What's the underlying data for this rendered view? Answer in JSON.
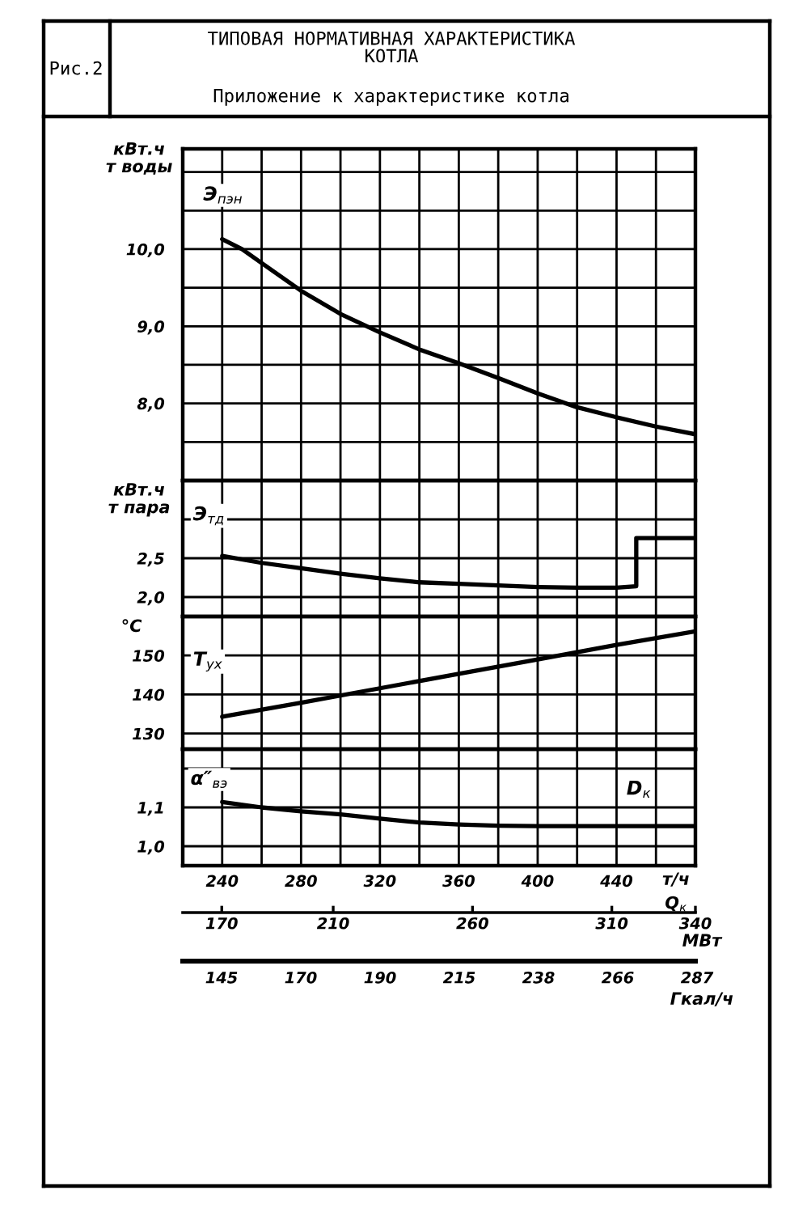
{
  "chart_data": [
    {
      "type": "line",
      "title": "ТИПОВАЯ НОРМАТИВНАЯ ХАРАКТЕРИСТИКА\nКОТЛА",
      "subtitle": "Приложение к характеристике котла",
      "annotations": [
        "Рис.2"
      ],
      "ylabel": "кВт.ч\nт воды",
      "xlim": [
        220,
        480
      ],
      "xticks": [
        240,
        {
          "value": 260,
          "label": null
        },
        280,
        {
          "value": 300,
          "label": null
        },
        320,
        {
          "value": 340,
          "label": null
        },
        360,
        {
          "value": 380,
          "label": null
        },
        400,
        {
          "value": 420,
          "label": null
        },
        440,
        {
          "value": 460,
          "label": null
        }
      ],
      "ylim": [
        7.0,
        11.3
      ],
      "yticks": [
        {
          "value": 7.5,
          "label": null
        },
        {
          "value": 8.0,
          "label": "8,0"
        },
        {
          "value": 8.5,
          "label": null
        },
        {
          "value": 9.0,
          "label": "9,0"
        },
        {
          "value": 9.5,
          "label": null
        },
        {
          "value": 10.0,
          "label": "10,0"
        },
        {
          "value": 10.5,
          "label": null
        },
        {
          "value": 11.0,
          "label": null
        }
      ],
      "grid": true,
      "tick_labels": "y",
      "series": [
        {
          "name": "Э$_{пэн}$",
          "color": "#000000",
          "x": [
            240,
            250,
            260,
            280,
            300,
            320,
            340,
            360,
            380,
            400,
            420,
            440,
            460,
            480
          ],
          "values": [
            10.13,
            10.0,
            9.82,
            9.46,
            9.16,
            8.92,
            8.7,
            8.52,
            8.33,
            8.13,
            7.95,
            7.82,
            7.7,
            7.6
          ]
        }
      ]
    },
    {
      "type": "line",
      "ylabel": "кВт.ч\nт пара",
      "xlim": [
        220,
        480
      ],
      "xticks": [
        240,
        {
          "value": 260,
          "label": null
        },
        280,
        {
          "value": 300,
          "label": null
        },
        320,
        {
          "value": 340,
          "label": null
        },
        360,
        {
          "value": 380,
          "label": null
        },
        400,
        {
          "value": 420,
          "label": null
        },
        440,
        {
          "value": 460,
          "label": null
        }
      ],
      "ylim": [
        1.75,
        3.5
      ],
      "yticks": [
        {
          "value": 2.0,
          "label": "2,0"
        },
        {
          "value": 2.5,
          "label": "2,5"
        },
        {
          "value": 3.0,
          "label": null
        }
      ],
      "grid": true,
      "tick_labels": "y",
      "series": [
        {
          "name": "Э$_{тд}$",
          "color": "#000000",
          "x": [
            240,
            260,
            280,
            300,
            320,
            340,
            360,
            380,
            400,
            420,
            440,
            450,
            450,
            480
          ],
          "values": [
            2.53,
            2.44,
            2.37,
            2.3,
            2.24,
            2.19,
            2.17,
            2.15,
            2.13,
            2.12,
            2.12,
            2.14,
            2.76,
            2.76
          ]
        }
      ]
    },
    {
      "type": "line",
      "ylabel": "°C",
      "xlim": [
        220,
        480
      ],
      "xticks": [
        240,
        {
          "value": 260,
          "label": null
        },
        280,
        {
          "value": 300,
          "label": null
        },
        320,
        {
          "value": 340,
          "label": null
        },
        360,
        {
          "value": 380,
          "label": null
        },
        400,
        {
          "value": 420,
          "label": null
        },
        440,
        {
          "value": 460,
          "label": null
        }
      ],
      "ylim": [
        126,
        160
      ],
      "yticks": [
        130,
        140,
        150
      ],
      "grid": true,
      "tick_labels": "y",
      "series": [
        {
          "name": "Т$_{ух}$",
          "color": "#000000",
          "x": [
            240,
            280,
            320,
            360,
            400,
            440,
            480
          ],
          "values": [
            134.3,
            137.9,
            141.6,
            145.3,
            149.0,
            152.7,
            156.2
          ]
        }
      ]
    },
    {
      "type": "line",
      "xlabel": "D$_{к}$",
      "x2label": "Q$_{к}$",
      "annotations": [
        "т/ч",
        "МВт"
      ],
      "xlim": [
        220,
        480
      ],
      "xticks": [
        240,
        {
          "value": 260,
          "label": null
        },
        280,
        {
          "value": 300,
          "label": null
        },
        320,
        {
          "value": 340,
          "label": null
        },
        360,
        {
          "value": 380,
          "label": null
        },
        400,
        {
          "value": 420,
          "label": null
        },
        440,
        {
          "value": 460,
          "label": null
        }
      ],
      "x2lim": [
        156,
        340
      ],
      "x2ticks": [
        170,
        210,
        260,
        310,
        340
      ],
      "ylim": [
        0.95,
        1.25
      ],
      "yticks": [
        {
          "value": 1.0,
          "label": "1,0"
        },
        {
          "value": 1.1,
          "label": "1,1"
        },
        {
          "value": 1.2,
          "label": null
        }
      ],
      "grid": true,
      "series": [
        {
          "name": "α″$_{вэ}$",
          "color": "#000000",
          "x": [
            240,
            260,
            280,
            300,
            320,
            340,
            360,
            380,
            400,
            420,
            440,
            460,
            480
          ],
          "values": [
            1.114,
            1.1,
            1.09,
            1.082,
            1.071,
            1.061,
            1.056,
            1.053,
            1.052,
            1.052,
            1.052,
            1.052,
            1.052
          ]
        }
      ]
    },
    {
      "type": "other",
      "annotations": [
        "145",
        "170",
        "190",
        "215",
        "238",
        "266",
        "287",
        "Гкал/ч"
      ]
    }
  ]
}
